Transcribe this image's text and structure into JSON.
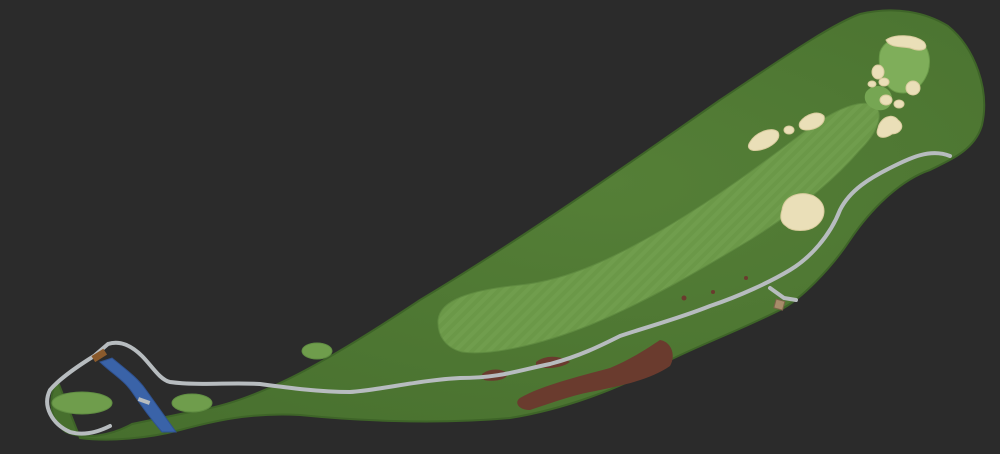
{
  "map": {
    "colors": {
      "background": "#2b2b2b",
      "rough": "#4f7a33",
      "rough_edge": "#3e6428",
      "fairway": "#6b9848",
      "green": "#7fae5a",
      "tee_box": "#6f9d4c",
      "sand": "#eadfb8",
      "cart_path": "#b7bcbf",
      "water": "#3a63a8",
      "dirt": "#6a3b2e",
      "wooden_bridge": "#8a5a2c"
    },
    "features": [
      "rough",
      "fairway",
      "green",
      "tee-box-back",
      "tee-box-middle",
      "tee-box-forward",
      "sand-bunkers",
      "cart-path",
      "creek",
      "waste-area",
      "cart-bridge",
      "shelter"
    ]
  }
}
